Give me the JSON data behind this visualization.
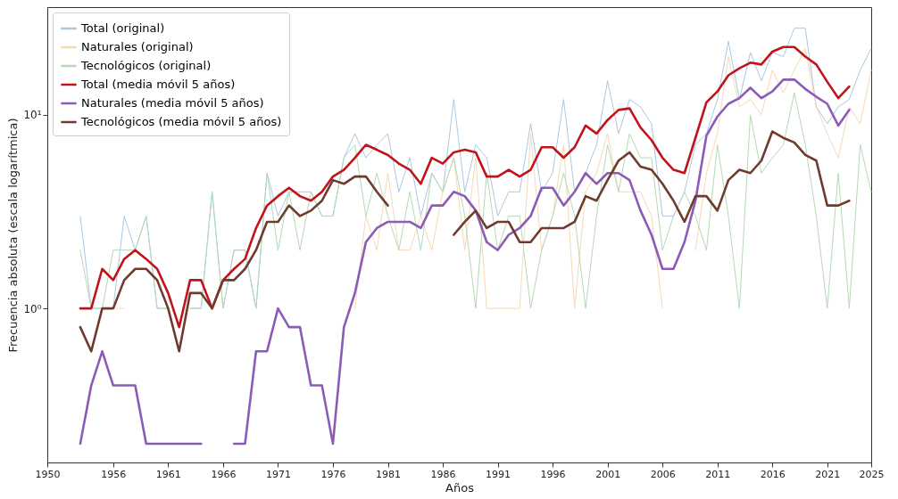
{
  "chart_data": {
    "type": "line",
    "xlabel": "Años",
    "ylabel": "Frecuencia absoluta (escala logarítmica)",
    "log": "y",
    "legend": "top left",
    "xlim": [
      1950,
      2025
    ],
    "ylim": [
      0.16,
      36
    ],
    "xticks": [
      1950,
      1956,
      1961,
      1966,
      1971,
      1976,
      1981,
      1986,
      1991,
      1996,
      2001,
      2006,
      2011,
      2016,
      2021,
      2025
    ],
    "yticks": [
      {
        "value": 1,
        "label": "10⁰"
      },
      {
        "value": 10,
        "label": "10¹"
      }
    ],
    "x": [
      1953,
      1954,
      1955,
      1956,
      1957,
      1958,
      1959,
      1960,
      1961,
      1962,
      1963,
      1964,
      1965,
      1966,
      1967,
      1968,
      1969,
      1970,
      1971,
      1972,
      1973,
      1974,
      1975,
      1976,
      1977,
      1978,
      1979,
      1980,
      1981,
      1982,
      1983,
      1984,
      1985,
      1986,
      1987,
      1988,
      1989,
      1990,
      1991,
      1992,
      1993,
      1994,
      1995,
      1996,
      1997,
      1998,
      1999,
      2000,
      2001,
      2002,
      2003,
      2004,
      2005,
      2006,
      2007,
      2008,
      2009,
      2010,
      2011,
      2012,
      2013,
      2014,
      2015,
      2016,
      2017,
      2018,
      2019,
      2020,
      2021,
      2022,
      2023,
      2024,
      2025
    ],
    "series": [
      {
        "name": "Total (original)",
        "color": "#a9c8e0",
        "values": [
          3,
          1,
          1,
          1,
          3,
          2,
          3,
          1,
          1,
          null,
          1,
          1,
          4,
          1,
          2,
          2,
          1,
          5,
          3,
          4,
          4,
          4,
          3,
          3,
          6,
          8,
          6,
          7,
          8,
          4,
          6,
          3,
          5,
          4,
          12,
          4,
          7,
          6,
          3,
          4,
          4,
          9,
          4,
          5,
          12,
          4,
          5,
          7,
          15,
          8,
          12,
          11,
          9,
          3,
          3,
          4,
          7,
          8,
          12,
          24,
          12,
          21,
          15,
          21,
          20,
          28,
          28,
          11,
          9,
          11,
          12,
          17,
          22
        ]
      },
      {
        "name": "Naturales (original)",
        "color": "#f6d9b4",
        "values": [
          null,
          null,
          1,
          1,
          1,
          null,
          null,
          null,
          null,
          null,
          null,
          null,
          null,
          null,
          null,
          null,
          null,
          null,
          null,
          null,
          null,
          null,
          null,
          null,
          null,
          1,
          3,
          2,
          5,
          2,
          2,
          3,
          2,
          4,
          6,
          2,
          6,
          1,
          1,
          1,
          1,
          8,
          2,
          3,
          7,
          1,
          4,
          5,
          8,
          4,
          4,
          4,
          3,
          1,
          null,
          null,
          2,
          5,
          8,
          20,
          11,
          12,
          10,
          17,
          13,
          17,
          22,
          11,
          8,
          6,
          11,
          9,
          17
        ]
      },
      {
        "name": "Tecnológicos (original)",
        "color": "#b5d9b5",
        "values": [
          2,
          1,
          1,
          2,
          2,
          2,
          3,
          1,
          1,
          null,
          1,
          1,
          4,
          1,
          2,
          2,
          1,
          5,
          2,
          4,
          2,
          4,
          3,
          3,
          6,
          7,
          3,
          5,
          3,
          2,
          4,
          2,
          5,
          4,
          6,
          3,
          1,
          5,
          2,
          3,
          3,
          1,
          2,
          3,
          5,
          3,
          1,
          3,
          7,
          4,
          8,
          6,
          6,
          2,
          3,
          4,
          3,
          2,
          7,
          3,
          1,
          10,
          5,
          6,
          7,
          13,
          7,
          3,
          1,
          5,
          1,
          7,
          4
        ]
      },
      {
        "name": "Total (media móvil 5 años)",
        "color": "#c0141a",
        "values": [
          1.0,
          1.0,
          1.6,
          1.4,
          1.8,
          2.0,
          1.8,
          1.6,
          1.2,
          0.8,
          1.4,
          1.4,
          1.0,
          1.4,
          1.6,
          1.8,
          2.6,
          3.4,
          3.8,
          4.2,
          3.8,
          3.6,
          4.0,
          4.8,
          5.2,
          6.0,
          7.0,
          6.6,
          6.2,
          5.6,
          5.2,
          4.4,
          6.0,
          5.6,
          6.4,
          6.6,
          6.4,
          4.8,
          4.8,
          5.2,
          4.8,
          5.2,
          6.8,
          6.8,
          6.0,
          6.8,
          8.8,
          8.0,
          9.4,
          10.6,
          10.8,
          8.6,
          7.4,
          6.0,
          5.2,
          5.0,
          7.6,
          11.6,
          13.2,
          16.0,
          17.4,
          18.6,
          18.2,
          21.2,
          22.4,
          22.4,
          20.0,
          18.2,
          14.8,
          12.2,
          14.0,
          null,
          null
        ]
      },
      {
        "name": "Naturales (media móvil 5 años)",
        "color": "#8c5bb8",
        "values": [
          0.2,
          0.4,
          0.6,
          0.4,
          0.4,
          0.4,
          0.2,
          0.2,
          0.2,
          0.2,
          0.2,
          0.2,
          null,
          null,
          0.2,
          0.2,
          0.6,
          0.6,
          1.0,
          0.8,
          0.8,
          0.4,
          0.4,
          0.2,
          0.8,
          1.2,
          2.2,
          2.6,
          2.8,
          2.8,
          2.8,
          2.6,
          3.4,
          3.4,
          4.0,
          3.8,
          3.2,
          2.2,
          2.0,
          2.4,
          2.6,
          3.0,
          4.2,
          4.2,
          3.4,
          4.0,
          5.0,
          4.4,
          5.0,
          5.0,
          4.6,
          3.2,
          2.4,
          1.6,
          1.6,
          2.2,
          3.6,
          7.8,
          9.8,
          11.4,
          12.2,
          13.8,
          12.2,
          13.2,
          15.2,
          15.2,
          13.6,
          12.4,
          11.4,
          8.8,
          10.6,
          null,
          null
        ]
      },
      {
        "name": "Tecnológicos (media móvil 5 años)",
        "color": "#6e3b2e",
        "values": [
          0.8,
          0.6,
          1.0,
          1.0,
          1.4,
          1.6,
          1.6,
          1.4,
          1.0,
          0.6,
          1.2,
          1.2,
          1.0,
          1.4,
          1.4,
          1.6,
          2.0,
          2.8,
          2.8,
          3.4,
          3.0,
          3.2,
          3.6,
          4.6,
          4.4,
          4.8,
          4.8,
          4.0,
          3.4,
          null,
          null,
          null,
          null,
          null,
          2.4,
          2.8,
          3.2,
          2.6,
          2.8,
          2.8,
          2.2,
          2.2,
          2.6,
          2.6,
          2.6,
          2.8,
          3.8,
          3.6,
          4.6,
          5.8,
          6.4,
          5.4,
          5.2,
          4.4,
          3.6,
          2.8,
          3.8,
          3.8,
          3.2,
          4.6,
          5.2,
          5.0,
          5.8,
          8.2,
          7.6,
          7.2,
          6.2,
          5.8,
          3.4,
          3.4,
          3.6,
          null,
          null
        ]
      }
    ]
  }
}
